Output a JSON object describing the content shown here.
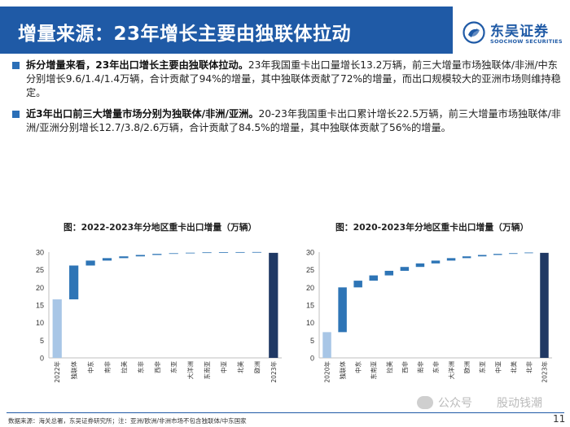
{
  "header": {
    "title": "增量来源：23年增长主要由独联体拉动"
  },
  "logo": {
    "name_cn": "东吴证券",
    "name_en": "SOOCHOW SECURITIES",
    "icon": "soochow-logo-icon"
  },
  "bullets": [
    {
      "bold": "拆分增量来看，23年出口增长主要由独联体拉动。",
      "text": "23年我国重卡出口量增长13.2万辆，前三大增量市场独联体/非洲/中东分别增长9.6/1.4/1.4万辆，合计贡献了94%的增量，其中独联体贡献了72%的增量，而出口规模较大的亚洲市场则维持稳定。"
    },
    {
      "bold": "近3年出口前三大增量市场分别为独联体/非洲/亚洲。",
      "text": "20-23年我国重卡出口累计增长22.5万辆，前三大增量市场独联体/非洲/亚洲分别增长12.7/3.8/2.6万辆，合计贡献了84.5%的增量，其中独联体贡献了56%的增量。"
    }
  ],
  "footer": {
    "source": "数据来源：海关总署，东吴证券研究所；注：亚洲/欧洲/非洲市场不包含独联体/中东国家",
    "page": "11",
    "watermark_left": "公众号",
    "watermark_right": "股动钱潮",
    "watermark_icon": "wechat-icon"
  },
  "colors": {
    "base": "#a8c6e6",
    "increment": "#2e75b6",
    "total": "#1f3864",
    "header": "#1f5aa6"
  },
  "chart_data": [
    {
      "type": "bar",
      "subtype": "waterfall",
      "title": "图：2022-2023年分地区重卡出口增量（万辆）",
      "categories": [
        "2022年",
        "独联体",
        "中东",
        "南非",
        "拉美",
        "东非",
        "西非",
        "东亚",
        "大洋洲",
        "东南亚",
        "中亚",
        "北美",
        "欧洲",
        "2023年"
      ],
      "values": [
        16.6,
        9.6,
        1.4,
        0.7,
        0.5,
        0.4,
        0.3,
        0.15,
        0.1,
        0.05,
        0.03,
        0.02,
        0.01,
        29.8
      ],
      "ylim": [
        0,
        30
      ],
      "yticks": [
        0,
        5,
        10,
        15,
        20,
        25,
        30
      ],
      "grid": false
    },
    {
      "type": "bar",
      "subtype": "waterfall",
      "title": "图：2020-2023年分地区重卡出口增量（万辆）",
      "categories": [
        "2020年",
        "独联体",
        "中东",
        "东南亚",
        "拉美",
        "西非",
        "南非",
        "东非",
        "大洋洲",
        "欧洲",
        "东亚",
        "中亚",
        "北美",
        "北非",
        "2023年"
      ],
      "values": [
        7.3,
        12.7,
        1.9,
        1.5,
        1.3,
        1.1,
        1.0,
        0.8,
        0.7,
        0.5,
        0.4,
        0.3,
        0.2,
        0.1,
        29.8
      ],
      "ylim": [
        0,
        30
      ],
      "yticks": [
        0,
        5,
        10,
        15,
        20,
        25,
        30
      ],
      "grid": false
    }
  ]
}
